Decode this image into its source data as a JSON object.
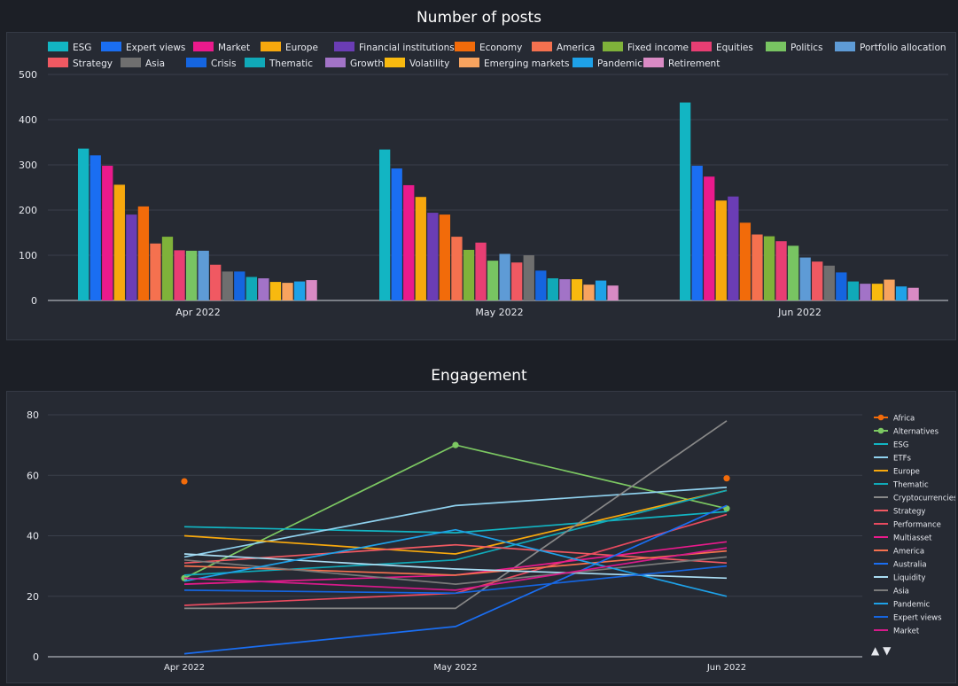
{
  "charts": {
    "posts": {
      "title": "Number of posts"
    },
    "engagement": {
      "title": "Engagement"
    }
  },
  "colors": {
    "background": "#1c1f26",
    "panel": "#262a33",
    "grid": "#3a3f4b",
    "text": "#e6e8ee"
  },
  "legend_nav": {
    "up": "▲",
    "down": "▼"
  },
  "chart_data": [
    {
      "type": "bar",
      "title": "Number of posts",
      "xlabel": "",
      "ylabel": "",
      "ylim": [
        0,
        500
      ],
      "yticks": [
        0,
        100,
        200,
        300,
        400,
        500
      ],
      "grid": true,
      "legend_position": "top",
      "categories": [
        "Apr 2022",
        "May 2022",
        "Jun 2022"
      ],
      "series": [
        {
          "name": "ESG",
          "color": "#12b5c3",
          "values": [
            336,
            334,
            438
          ]
        },
        {
          "name": "Expert views",
          "color": "#1a6ef2",
          "values": [
            321,
            292,
            298
          ]
        },
        {
          "name": "Market",
          "color": "#ea1a8c",
          "values": [
            298,
            255,
            274
          ]
        },
        {
          "name": "Europe",
          "color": "#f7a80d",
          "values": [
            256,
            229,
            221
          ]
        },
        {
          "name": "Financial institutions",
          "color": "#6b3db5",
          "values": [
            190,
            194,
            230
          ]
        },
        {
          "name": "Economy",
          "color": "#f26b0a",
          "values": [
            208,
            190,
            172
          ]
        },
        {
          "name": "America",
          "color": "#f5714f",
          "values": [
            126,
            141,
            146
          ]
        },
        {
          "name": "Fixed income",
          "color": "#7fb23a",
          "values": [
            141,
            112,
            142
          ]
        },
        {
          "name": "Equities",
          "color": "#e83e73",
          "values": [
            111,
            128,
            131
          ]
        },
        {
          "name": "Politics",
          "color": "#78c462",
          "values": [
            110,
            88,
            121
          ]
        },
        {
          "name": "Portfolio allocation",
          "color": "#5e9bd6",
          "values": [
            110,
            103,
            95
          ]
        },
        {
          "name": "Strategy",
          "color": "#f05962",
          "values": [
            79,
            84,
            86
          ]
        },
        {
          "name": "Asia",
          "color": "#6f6f6f",
          "values": [
            64,
            100,
            77
          ]
        },
        {
          "name": "Crisis",
          "color": "#1565e0",
          "values": [
            64,
            66,
            62
          ]
        },
        {
          "name": "Thematic",
          "color": "#10a9b8",
          "values": [
            52,
            49,
            42
          ]
        },
        {
          "name": "Growth",
          "color": "#a273c7",
          "values": [
            49,
            47,
            37
          ]
        },
        {
          "name": "Volatility",
          "color": "#f8b90f",
          "values": [
            41,
            47,
            37
          ]
        },
        {
          "name": "Emerging markets",
          "color": "#f7a35f",
          "values": [
            39,
            35,
            46
          ]
        },
        {
          "name": "Pandemic",
          "color": "#1ea1e8",
          "values": [
            42,
            44,
            31
          ]
        },
        {
          "name": "Retirement",
          "color": "#d98ac4",
          "values": [
            45,
            33,
            28
          ]
        }
      ]
    },
    {
      "type": "line",
      "title": "Engagement",
      "xlabel": "",
      "ylabel": "",
      "ylim": [
        0,
        80
      ],
      "yticks": [
        0,
        20,
        40,
        60,
        80
      ],
      "grid": true,
      "legend_position": "right",
      "x": [
        "Apr 2022",
        "May 2022",
        "Jun 2022"
      ],
      "series": [
        {
          "name": "Africa",
          "color": "#f26b0a",
          "marker": true,
          "values": [
            58,
            null,
            59
          ]
        },
        {
          "name": "Alternatives",
          "color": "#7cc862",
          "marker": true,
          "values": [
            26,
            70,
            49
          ]
        },
        {
          "name": "ESG",
          "color": "#12b5c3",
          "values": [
            43,
            41,
            48
          ]
        },
        {
          "name": "ETFs",
          "color": "#8fd1ee",
          "values": [
            33,
            50,
            56
          ]
        },
        {
          "name": "Europe",
          "color": "#f7a80d",
          "values": [
            40,
            34,
            55
          ]
        },
        {
          "name": "Thematic",
          "color": "#10a9b8",
          "values": [
            27,
            32,
            55
          ]
        },
        {
          "name": "Cryptocurrencies",
          "color": "#888888",
          "values": [
            16,
            16,
            78
          ]
        },
        {
          "name": "Strategy",
          "color": "#f05962",
          "values": [
            31,
            37,
            31
          ]
        },
        {
          "name": "Performance",
          "color": "#e84a5f",
          "values": [
            17,
            21,
            47
          ]
        },
        {
          "name": "Multiasset",
          "color": "#ea1a8c",
          "values": [
            24,
            27,
            38
          ]
        },
        {
          "name": "America",
          "color": "#f5714f",
          "values": [
            30,
            27,
            35
          ]
        },
        {
          "name": "Australia",
          "color": "#1a6ef2",
          "values": [
            1,
            10,
            50
          ]
        },
        {
          "name": "Liquidity",
          "color": "#a9dcf2",
          "values": [
            34,
            29,
            26
          ]
        },
        {
          "name": "Asia",
          "color": "#7a7a7a",
          "values": [
            32,
            24,
            33
          ]
        },
        {
          "name": "Pandemic",
          "color": "#1ea1e8",
          "values": [
            25,
            42,
            20
          ]
        },
        {
          "name": "Expert views",
          "color": "#1565e0",
          "values": [
            22,
            21,
            30
          ]
        },
        {
          "name": "Market",
          "color": "#d61a8a",
          "values": [
            26,
            22,
            36
          ]
        }
      ]
    }
  ]
}
